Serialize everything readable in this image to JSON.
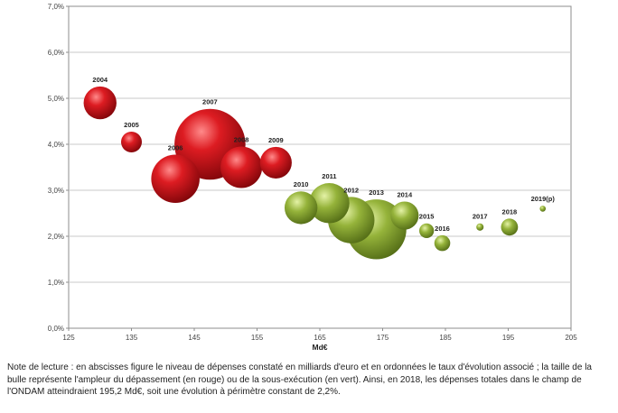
{
  "chart_data": {
    "type": "scatter",
    "subtype": "bubble",
    "title": "",
    "xlabel": "Md€",
    "ylabel": "",
    "xlim": [
      125,
      205
    ],
    "ylim": [
      0,
      7
    ],
    "xticks": [
      125,
      135,
      145,
      155,
      165,
      175,
      185,
      195,
      205
    ],
    "yticks": [
      0,
      1,
      2,
      3,
      4,
      5,
      6,
      7
    ],
    "x_tick_labels": [
      "125",
      "135",
      "145",
      "155",
      "165",
      "175",
      "185",
      "195",
      "205"
    ],
    "y_tick_labels": [
      "0,0%",
      "1,0%",
      "2,0%",
      "3,0%",
      "4,0%",
      "5,0%",
      "6,0%",
      "7,0%"
    ],
    "grid": true,
    "legend": "none",
    "colors": {
      "overrun": "#c0141a",
      "underrun": "#8aaa2a"
    },
    "points": [
      {
        "label": "2004",
        "x": 130.0,
        "y": 4.9,
        "size": 3.0,
        "status": "overrun"
      },
      {
        "label": "2005",
        "x": 135.0,
        "y": 4.05,
        "size": 1.2,
        "status": "overrun"
      },
      {
        "label": "2006",
        "x": 142.0,
        "y": 3.25,
        "size": 6.5,
        "status": "overrun"
      },
      {
        "label": "2007",
        "x": 147.5,
        "y": 4.0,
        "size": 14.0,
        "status": "overrun"
      },
      {
        "label": "2008",
        "x": 152.5,
        "y": 3.5,
        "size": 4.8,
        "status": "overrun"
      },
      {
        "label": "2009",
        "x": 158.0,
        "y": 3.6,
        "size": 2.8,
        "status": "overrun"
      },
      {
        "label": "2010",
        "x": 162.0,
        "y": 2.62,
        "size": 3.0,
        "status": "underrun"
      },
      {
        "label": "2011",
        "x": 166.5,
        "y": 2.72,
        "size": 4.5,
        "status": "underrun"
      },
      {
        "label": "2012",
        "x": 170.0,
        "y": 2.35,
        "size": 6.0,
        "status": "underrun"
      },
      {
        "label": "2013",
        "x": 174.0,
        "y": 2.15,
        "size": 10.0,
        "status": "underrun"
      },
      {
        "label": "2014",
        "x": 178.5,
        "y": 2.45,
        "size": 2.2,
        "status": "underrun"
      },
      {
        "label": "2015",
        "x": 182.0,
        "y": 2.12,
        "size": 0.6,
        "status": "underrun"
      },
      {
        "label": "2016",
        "x": 184.5,
        "y": 1.85,
        "size": 0.7,
        "status": "underrun"
      },
      {
        "label": "2017",
        "x": 190.5,
        "y": 2.2,
        "size": 0.15,
        "status": "underrun"
      },
      {
        "label": "2018",
        "x": 195.2,
        "y": 2.2,
        "size": 0.8,
        "status": "underrun"
      },
      {
        "label": "2019(p)",
        "x": 200.5,
        "y": 2.6,
        "size": 0.1,
        "status": "underrun"
      }
    ]
  },
  "note": "Note de lecture : en abscisses figure le niveau de dépenses constaté en milliards d'euro et en ordonnées le taux d'évolution associé ; la taille de la bulle représente l'ampleur du dépassement (en rouge) ou de la sous-exécution (en vert). Ainsi, en 2018, les dépenses totales dans le champ de l'ONDAM atteindraient 195,2 Md€, soit une évolution à périmètre constant de 2,2%."
}
